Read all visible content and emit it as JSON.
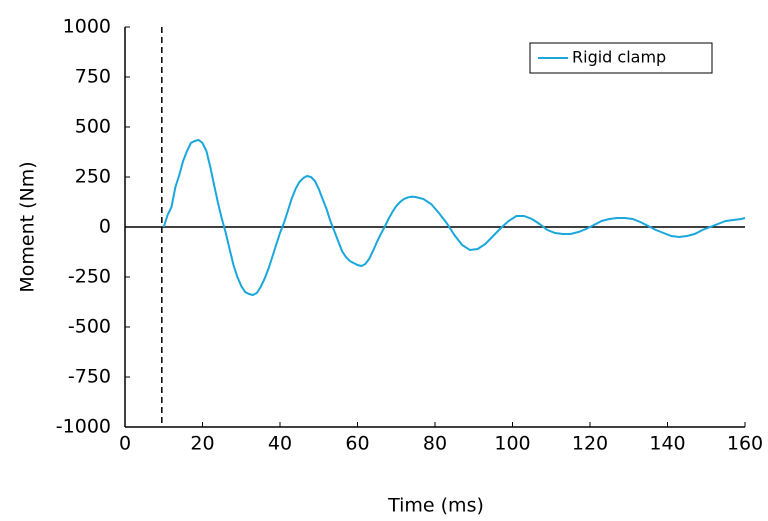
{
  "chart_data": {
    "type": "line",
    "xlabel": "Time (ms)",
    "ylabel": "Moment (Nm)",
    "xlim": [
      0,
      160
    ],
    "xticks": [
      0,
      20,
      40,
      60,
      80,
      100,
      120,
      140,
      160
    ],
    "ylim": [
      -1000,
      1000
    ],
    "yticks": [
      -1000,
      -750,
      -500,
      -250,
      0,
      250,
      500,
      750,
      1000
    ],
    "vline": 9.5,
    "legend": "upper right",
    "x": [
      10,
      11,
      12,
      13,
      14,
      15,
      16,
      17,
      18,
      19,
      20,
      21,
      22,
      23,
      24,
      25,
      26,
      27,
      28,
      29,
      30,
      31,
      32,
      33,
      34,
      35,
      36,
      37,
      38,
      39,
      40,
      41,
      42,
      43,
      44,
      45,
      46,
      47,
      48,
      49,
      50,
      51,
      52,
      53,
      54,
      55,
      56,
      57,
      58,
      59,
      60,
      61,
      62,
      63,
      64,
      65,
      66,
      67,
      68,
      69,
      70,
      71,
      72,
      73,
      74,
      75,
      77,
      79,
      81,
      83,
      85,
      87,
      89,
      91,
      93,
      95,
      97,
      99,
      101,
      103,
      105,
      107,
      109,
      111,
      113,
      115,
      117,
      119,
      121,
      123,
      125,
      127,
      129,
      131,
      133,
      135,
      137,
      139,
      141,
      143,
      145,
      147,
      149,
      151,
      153,
      155,
      157,
      159,
      160
    ],
    "series": [
      {
        "name": "Rigid clamp",
        "color": "#1aa7dc",
        "values": [
          0,
          60,
          100,
          200,
          260,
          330,
          380,
          420,
          430,
          435,
          420,
          380,
          300,
          210,
          120,
          40,
          -30,
          -110,
          -190,
          -250,
          -295,
          -325,
          -335,
          -340,
          -330,
          -300,
          -260,
          -210,
          -150,
          -90,
          -30,
          20,
          80,
          140,
          190,
          225,
          245,
          255,
          250,
          230,
          190,
          140,
          90,
          30,
          -20,
          -70,
          -120,
          -150,
          -170,
          -180,
          -190,
          -195,
          -185,
          -160,
          -120,
          -75,
          -35,
          0,
          40,
          75,
          105,
          125,
          140,
          148,
          152,
          150,
          140,
          115,
          70,
          20,
          -40,
          -90,
          -115,
          -110,
          -85,
          -45,
          -5,
          30,
          55,
          55,
          40,
          15,
          -15,
          -30,
          -35,
          -35,
          -25,
          -10,
          10,
          30,
          40,
          45,
          45,
          40,
          25,
          5,
          -15,
          -30,
          -45,
          -50,
          -45,
          -35,
          -15,
          0,
          15,
          30,
          35,
          40,
          45
        ]
      }
    ]
  }
}
